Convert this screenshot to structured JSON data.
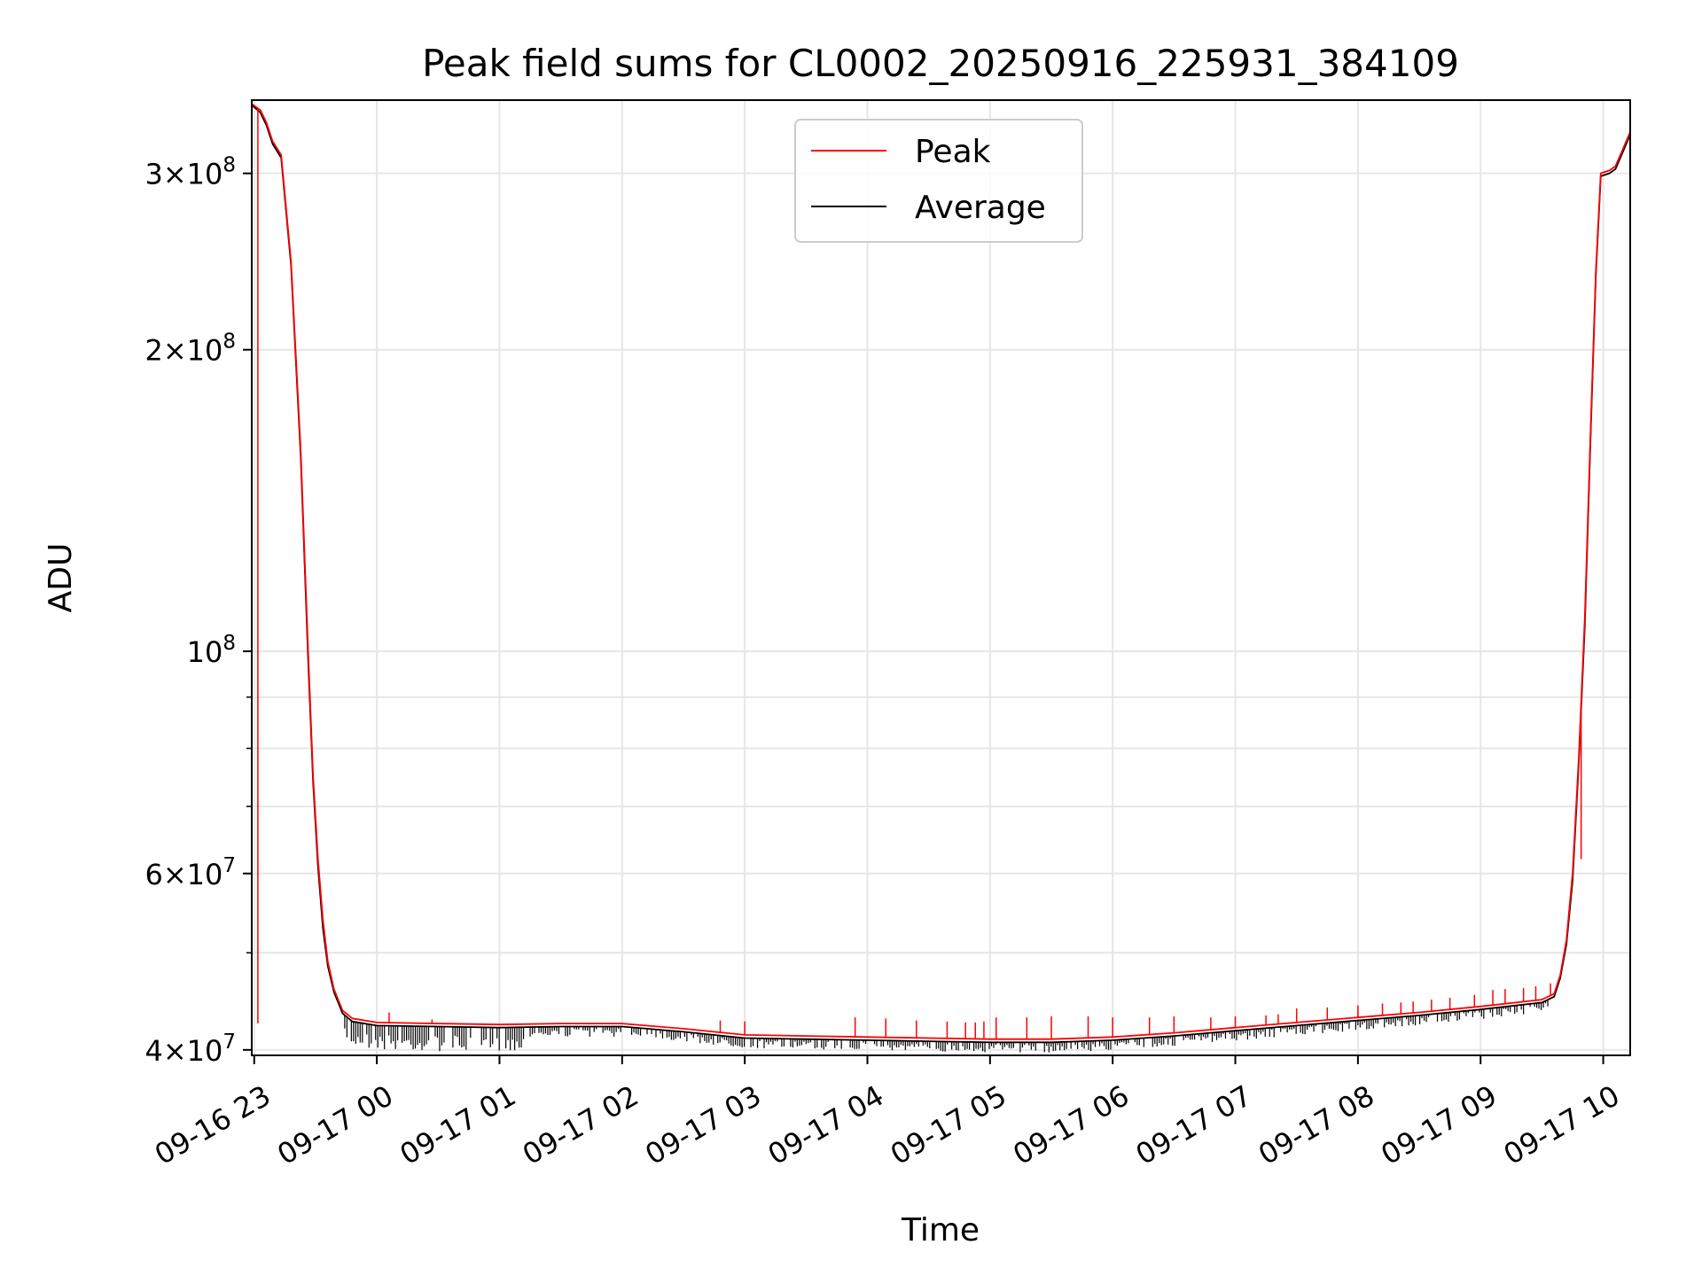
{
  "chart_data": {
    "type": "line",
    "title": "Peak field sums for CL0002_20250916_225931_384109",
    "xlabel": "Time",
    "ylabel": "ADU",
    "yscale": "log",
    "ylim": [
      39500000,
      355000000
    ],
    "xlim_hours_since_2300": [
      -0.02,
      11.22
    ],
    "grid": true,
    "legend_position": "upper-center",
    "x_ticks": [
      {
        "hour": 0,
        "label": "09-16 23"
      },
      {
        "hour": 1,
        "label": "09-17 00"
      },
      {
        "hour": 2,
        "label": "09-17 01"
      },
      {
        "hour": 3,
        "label": "09-17 02"
      },
      {
        "hour": 4,
        "label": "09-17 03"
      },
      {
        "hour": 5,
        "label": "09-17 04"
      },
      {
        "hour": 6,
        "label": "09-17 05"
      },
      {
        "hour": 7,
        "label": "09-17 06"
      },
      {
        "hour": 8,
        "label": "09-17 07"
      },
      {
        "hour": 9,
        "label": "09-17 08"
      },
      {
        "hour": 10,
        "label": "09-17 09"
      },
      {
        "hour": 11,
        "label": "09-17 10"
      }
    ],
    "y_major_ticks": [
      {
        "value": 40000000,
        "mantissa": "4",
        "exponent": "7"
      },
      {
        "value": 60000000,
        "mantissa": "6",
        "exponent": "7"
      },
      {
        "value": 100000000,
        "mantissa": "",
        "exponent": "8"
      },
      {
        "value": 200000000,
        "mantissa": "2",
        "exponent": "8"
      },
      {
        "value": 300000000,
        "mantissa": "3",
        "exponent": "8"
      }
    ],
    "y_minor_ticks": [
      50000000,
      70000000,
      80000000,
      90000000
    ],
    "series": [
      {
        "name": "Peak",
        "color": "#ff0000",
        "points": [
          [
            -0.02,
            352000000
          ],
          [
            0.05,
            347000000
          ],
          [
            0.1,
            337000000
          ],
          [
            0.15,
            323000000
          ],
          [
            0.22,
            313000000
          ],
          [
            0.3,
            245000000
          ],
          [
            0.38,
            158000000
          ],
          [
            0.44,
            100000000
          ],
          [
            0.48,
            75000000
          ],
          [
            0.52,
            62000000
          ],
          [
            0.56,
            54000000
          ],
          [
            0.6,
            49000000
          ],
          [
            0.65,
            46000000
          ],
          [
            0.72,
            43800000
          ],
          [
            0.8,
            43000000
          ],
          [
            1.0,
            42600000
          ],
          [
            1.5,
            42500000
          ],
          [
            2.0,
            42400000
          ],
          [
            2.5,
            42500000
          ],
          [
            3.0,
            42500000
          ],
          [
            3.5,
            42000000
          ],
          [
            4.0,
            41400000
          ],
          [
            4.5,
            41300000
          ],
          [
            5.0,
            41200000
          ],
          [
            5.5,
            41100000
          ],
          [
            6.0,
            41000000
          ],
          [
            6.5,
            41000000
          ],
          [
            7.0,
            41200000
          ],
          [
            7.5,
            41600000
          ],
          [
            8.0,
            42100000
          ],
          [
            8.5,
            42600000
          ],
          [
            9.0,
            43100000
          ],
          [
            9.5,
            43600000
          ],
          [
            10.0,
            44200000
          ],
          [
            10.5,
            44900000
          ],
          [
            10.6,
            45500000
          ],
          [
            10.65,
            47500000
          ],
          [
            10.7,
            51500000
          ],
          [
            10.75,
            60000000
          ],
          [
            10.8,
            78000000
          ],
          [
            10.85,
            108000000
          ],
          [
            10.9,
            170000000
          ],
          [
            10.94,
            240000000
          ],
          [
            10.98,
            300000000
          ],
          [
            11.05,
            302000000
          ],
          [
            11.1,
            305000000
          ],
          [
            11.15,
            315000000
          ],
          [
            11.22,
            330000000
          ]
        ],
        "spikes": [
          [
            0.03,
            42500000
          ],
          [
            1.1,
            43600000
          ],
          [
            1.45,
            42900000
          ],
          [
            3.8,
            42800000
          ],
          [
            4.0,
            42700000
          ],
          [
            4.9,
            43100000
          ],
          [
            5.15,
            43000000
          ],
          [
            5.4,
            42800000
          ],
          [
            5.65,
            42700000
          ],
          [
            5.8,
            42600000
          ],
          [
            5.88,
            42600000
          ],
          [
            5.95,
            42700000
          ],
          [
            6.05,
            43100000
          ],
          [
            6.3,
            43100000
          ],
          [
            6.5,
            43200000
          ],
          [
            6.8,
            43200000
          ],
          [
            7.0,
            43100000
          ],
          [
            7.3,
            43100000
          ],
          [
            7.5,
            43200000
          ],
          [
            7.8,
            43100000
          ],
          [
            8.0,
            43200000
          ],
          [
            8.25,
            43300000
          ],
          [
            8.35,
            43400000
          ],
          [
            8.5,
            44000000
          ],
          [
            8.75,
            44100000
          ],
          [
            9.0,
            44300000
          ],
          [
            9.2,
            44500000
          ],
          [
            9.35,
            44600000
          ],
          [
            9.45,
            44700000
          ],
          [
            9.6,
            44900000
          ],
          [
            9.75,
            45100000
          ],
          [
            9.95,
            45400000
          ],
          [
            10.1,
            45900000
          ],
          [
            10.2,
            46000000
          ],
          [
            10.35,
            46100000
          ],
          [
            10.45,
            46300000
          ],
          [
            10.57,
            46600000
          ],
          [
            10.82,
            62000000
          ]
        ]
      },
      {
        "name": "Average",
        "color": "#000000",
        "points": [
          [
            -0.02,
            351000000
          ],
          [
            0.05,
            345000000
          ],
          [
            0.1,
            335000000
          ],
          [
            0.15,
            321000000
          ],
          [
            0.22,
            311000000
          ],
          [
            0.3,
            243000000
          ],
          [
            0.38,
            156000000
          ],
          [
            0.44,
            98000000
          ],
          [
            0.48,
            74000000
          ],
          [
            0.52,
            61000000
          ],
          [
            0.56,
            53000000
          ],
          [
            0.6,
            48500000
          ],
          [
            0.65,
            45700000
          ],
          [
            0.72,
            43500000
          ],
          [
            0.8,
            42700000
          ],
          [
            1.0,
            42300000
          ],
          [
            1.5,
            42200000
          ],
          [
            2.0,
            42100000
          ],
          [
            2.5,
            42200000
          ],
          [
            3.0,
            42200000
          ],
          [
            3.5,
            41700000
          ],
          [
            4.0,
            41100000
          ],
          [
            4.5,
            41000000
          ],
          [
            5.0,
            40900000
          ],
          [
            5.5,
            40800000
          ],
          [
            6.0,
            40700000
          ],
          [
            6.5,
            40700000
          ],
          [
            7.0,
            40900000
          ],
          [
            7.5,
            41300000
          ],
          [
            8.0,
            41800000
          ],
          [
            8.5,
            42300000
          ],
          [
            9.0,
            42800000
          ],
          [
            9.5,
            43300000
          ],
          [
            10.0,
            43900000
          ],
          [
            10.5,
            44600000
          ],
          [
            10.6,
            45200000
          ],
          [
            10.65,
            47200000
          ],
          [
            10.7,
            51000000
          ],
          [
            10.75,
            59000000
          ],
          [
            10.8,
            77000000
          ],
          [
            10.85,
            106000000
          ],
          [
            10.9,
            168000000
          ],
          [
            10.94,
            238000000
          ],
          [
            10.98,
            298000000
          ],
          [
            11.05,
            300000000
          ],
          [
            11.1,
            303000000
          ],
          [
            11.15,
            313000000
          ],
          [
            11.22,
            328000000
          ]
        ]
      }
    ]
  }
}
